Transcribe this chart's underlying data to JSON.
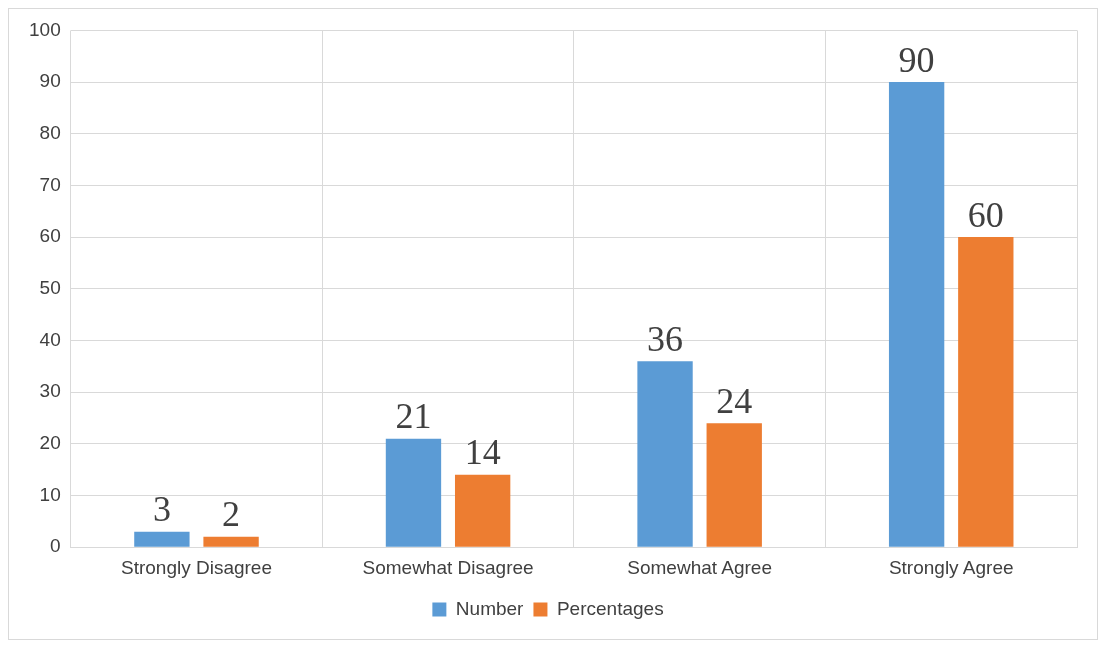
{
  "chart_data": {
    "type": "bar",
    "categories": [
      "Strongly Disagree",
      "Somewhat Disagree",
      "Somewhat Agree",
      "Strongly Agree"
    ],
    "series": [
      {
        "name": "Number",
        "color": "#5b9bd5",
        "values": [
          3,
          21,
          36,
          90
        ]
      },
      {
        "name": "Percentages",
        "color": "#ed7d31",
        "values": [
          2,
          14,
          24,
          60
        ]
      }
    ],
    "ylim": [
      0,
      100
    ],
    "yticks": [
      0,
      10,
      20,
      30,
      40,
      50,
      60,
      70,
      80,
      90,
      100
    ],
    "grid": true,
    "legend": "bottom",
    "data_labels": true
  }
}
